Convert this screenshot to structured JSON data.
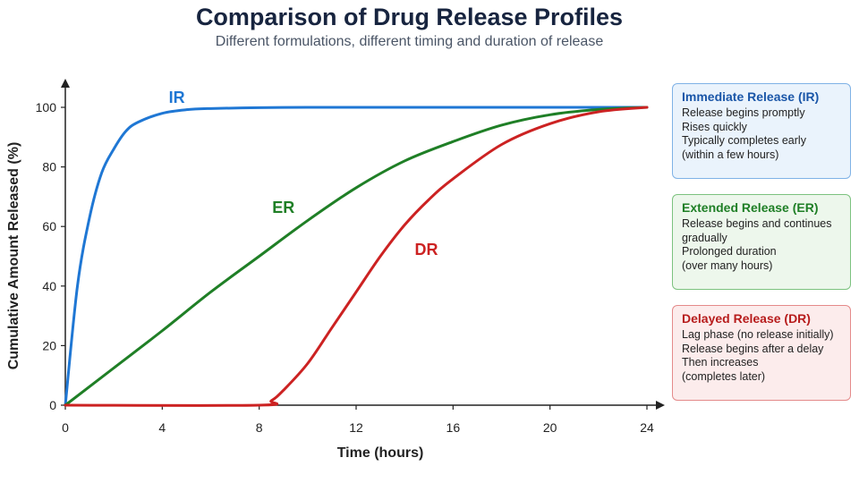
{
  "title": "Comparison of Drug Release Profiles",
  "subtitle": "Different formulations, different timing and duration of release",
  "chart_data": {
    "type": "line",
    "xlabel": "Time (hours)",
    "ylabel": "Cumulative Amount Released (%)",
    "xlim": [
      0,
      24
    ],
    "ylim": [
      0,
      100
    ],
    "xticks": [
      0,
      4,
      8,
      12,
      16,
      20,
      24
    ],
    "yticks": [
      0,
      20,
      40,
      60,
      80,
      100
    ],
    "grid": false,
    "legend_placement": "right",
    "series": [
      {
        "name": "IR",
        "color": "#1f77d4",
        "x": [
          0,
          0.5,
          1,
          1.5,
          2,
          2.5,
          3,
          4,
          5,
          6,
          8,
          10,
          12,
          16,
          20,
          24
        ],
        "y": [
          0,
          40,
          63,
          78,
          86,
          92,
          95,
          98,
          99.2,
          99.6,
          99.9,
          100,
          100,
          100,
          100,
          100
        ]
      },
      {
        "name": "ER",
        "color": "#1f7f26",
        "x": [
          0,
          2,
          4,
          6,
          8,
          10,
          12,
          14,
          16,
          18,
          20,
          22,
          24
        ],
        "y": [
          0,
          12.5,
          25,
          38,
          50,
          62,
          73,
          82,
          88.5,
          94,
          97.5,
          99.3,
          100
        ]
      },
      {
        "name": "DR",
        "color": "#cc2222",
        "x": [
          0,
          8,
          8.5,
          9,
          10,
          11,
          12,
          13,
          14,
          15,
          16,
          18,
          20,
          22,
          24
        ],
        "y": [
          0,
          0,
          1.5,
          5,
          14,
          26,
          38,
          50,
          60.5,
          69,
          76,
          87.5,
          94.5,
          98.5,
          100
        ]
      }
    ],
    "annotations": [
      {
        "text": "IR",
        "x": 4.6,
        "y": 101.5,
        "color": "#1f77d4"
      },
      {
        "text": "ER",
        "x": 9.0,
        "y": 64.5,
        "color": "#1f7f26"
      },
      {
        "text": "DR",
        "x": 14.9,
        "y": 50.5,
        "color": "#cc2222"
      }
    ]
  },
  "legend": [
    {
      "title": "Immediate Release (IR)",
      "lines": [
        "Release begins promptly",
        "Rises quickly",
        "Typically completes early",
        "(within a few hours)"
      ],
      "border": "#7fb2e6",
      "bg": "#eaf3fc",
      "title_color": "#1a56a8"
    },
    {
      "title": "Extended Release (ER)",
      "lines": [
        "Release begins and continues",
        "gradually",
        "Prolonged duration",
        "(over many hours)"
      ],
      "border": "#7cc27f",
      "bg": "#edf7ec",
      "title_color": "#1f7f26"
    },
    {
      "title": "Delayed Release (DR)",
      "lines": [
        "Lag phase (no release initially)",
        "Release begins after a delay",
        "Then increases",
        "(completes later)"
      ],
      "border": "#e48a8a",
      "bg": "#fcecec",
      "title_color": "#b71c1c"
    }
  ]
}
